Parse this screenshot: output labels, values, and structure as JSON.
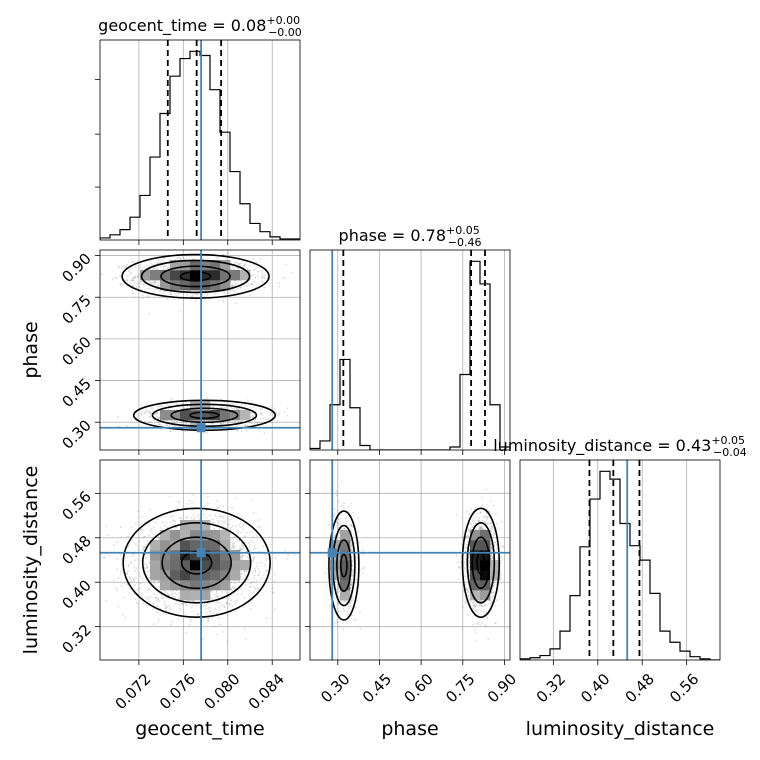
{
  "chart_data": {
    "type": "corner",
    "parameters": [
      {
        "name": "geocent_time",
        "label": "geocent_time",
        "range": [
          0.0685,
          0.0865
        ],
        "ticks": [
          "0.072",
          "0.076",
          "0.080",
          "0.084"
        ],
        "tick_values": [
          0.072,
          0.076,
          0.08,
          0.084
        ],
        "title": {
          "prefix": "geocent_time = 0.08",
          "plus": "+0.00",
          "minus": "−0.00"
        },
        "quantiles": [
          0.0746,
          0.0772,
          0.0794
        ],
        "truth": 0.0776,
        "hist_bins": [
          0.0685,
          0.0694,
          0.0703,
          0.0712,
          0.0721,
          0.073,
          0.0739,
          0.0748,
          0.0757,
          0.0766,
          0.0775,
          0.0784,
          0.0793,
          0.0802,
          0.0811,
          0.082,
          0.0829,
          0.0838,
          0.0847,
          0.0856,
          0.0865
        ],
        "hist_counts": [
          2,
          5,
          10,
          22,
          43,
          80,
          122,
          158,
          175,
          182,
          178,
          145,
          104,
          66,
          35,
          16,
          8,
          3,
          1,
          1
        ]
      },
      {
        "name": "phase",
        "label": "phase",
        "range": [
          0.2,
          0.92
        ],
        "ticks": [
          "0.30",
          "0.45",
          "0.60",
          "0.75",
          "0.90"
        ],
        "tick_values": [
          0.3,
          0.45,
          0.6,
          0.75,
          0.9
        ],
        "title": {
          "prefix": "phase = 0.78",
          "plus": "+0.05",
          "minus": "−0.46"
        },
        "quantiles": [
          0.32,
          0.78,
          0.83
        ],
        "truth": 0.28,
        "hist_bins": [
          0.2,
          0.236,
          0.272,
          0.308,
          0.344,
          0.38,
          0.416,
          0.452,
          0.488,
          0.524,
          0.56,
          0.596,
          0.632,
          0.668,
          0.704,
          0.74,
          0.776,
          0.812,
          0.848,
          0.884,
          0.92
        ],
        "hist_counts": [
          1,
          6,
          30,
          60,
          28,
          3,
          0,
          0,
          0,
          0,
          0,
          0,
          0,
          0,
          2,
          50,
          125,
          110,
          30,
          2
        ]
      },
      {
        "name": "luminosity_distance",
        "label": "luminosity_distance",
        "range": [
          0.26,
          0.62
        ],
        "ticks": [
          "0.32",
          "0.40",
          "0.48",
          "0.56"
        ],
        "tick_values": [
          0.32,
          0.4,
          0.48,
          0.56
        ],
        "title": {
          "prefix": "luminosity_distance = 0.43",
          "plus": "+0.05",
          "minus": "−0.04"
        },
        "quantiles": [
          0.385,
          0.428,
          0.475
        ],
        "truth": 0.453,
        "hist_bins": [
          0.26,
          0.278,
          0.296,
          0.314,
          0.332,
          0.35,
          0.368,
          0.386,
          0.404,
          0.422,
          0.44,
          0.458,
          0.476,
          0.494,
          0.512,
          0.53,
          0.548,
          0.566,
          0.584,
          0.602,
          0.62
        ],
        "hist_counts": [
          1,
          2,
          4,
          10,
          26,
          58,
          102,
          145,
          170,
          163,
          123,
          103,
          90,
          60,
          26,
          16,
          8,
          3,
          1,
          0
        ]
      }
    ],
    "pairs": [
      {
        "x": "geocent_time",
        "y": "phase",
        "modes": [
          {
            "center": [
              0.0771,
              0.825
            ],
            "spread": [
              0.0027,
              0.032
            ],
            "weight": 0.66
          },
          {
            "center": [
              0.0779,
              0.325
            ],
            "spread": [
              0.0026,
              0.022
            ],
            "weight": 0.34
          }
        ]
      },
      {
        "x": "geocent_time",
        "y": "luminosity_distance",
        "modes": [
          {
            "center": [
              0.0772,
              0.435
            ],
            "spread": [
              0.0027,
              0.04
            ],
            "weight": 1.0
          }
        ]
      },
      {
        "x": "phase",
        "y": "luminosity_distance",
        "modes": [
          {
            "center": [
              0.815,
              0.435
            ],
            "spread": [
              0.027,
              0.04
            ],
            "weight": 0.66
          },
          {
            "center": [
              0.322,
              0.43
            ],
            "spread": [
              0.022,
              0.04
            ],
            "weight": 0.34
          }
        ]
      }
    ],
    "grid": true,
    "truth_color": "#4682b4",
    "point_color": "#9a9a9a"
  }
}
